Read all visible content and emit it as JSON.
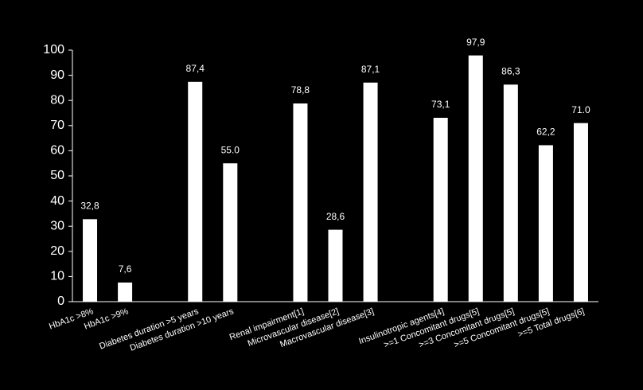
{
  "chart_data": {
    "type": "bar",
    "categories": [
      "HbA1c >8%",
      "HbA1c >9%",
      null,
      "Diabetes duration >5 years",
      "Diabetes duration >10 years",
      null,
      "Renal impairment[1]",
      "Microvascular disease[2]",
      "Macrovascular disease[3]",
      null,
      "Insulinotropic agents[4]",
      ">=1 Concomitant drugs[5]",
      ">=3 Concomitant drugs[5]",
      ">=5 Concomitant drugs[5]",
      ">=5 Total drugs[6]"
    ],
    "values": [
      32.8,
      7.6,
      null,
      87.4,
      55.0,
      null,
      78.8,
      28.6,
      87.1,
      null,
      73.1,
      97.9,
      86.3,
      62.2,
      71.0
    ],
    "value_labels": [
      "32,8",
      "7,6",
      null,
      "87,4",
      "55.0",
      null,
      "78,8",
      "28,6",
      "87,1",
      null,
      "73,1",
      "97,9",
      "86,3",
      "62,2",
      "71.0"
    ],
    "color": "#ffffff",
    "ylim": [
      0,
      100
    ],
    "yticks": [
      0,
      10,
      20,
      30,
      40,
      50,
      60,
      70,
      80,
      90,
      100
    ],
    "grid": false
  }
}
